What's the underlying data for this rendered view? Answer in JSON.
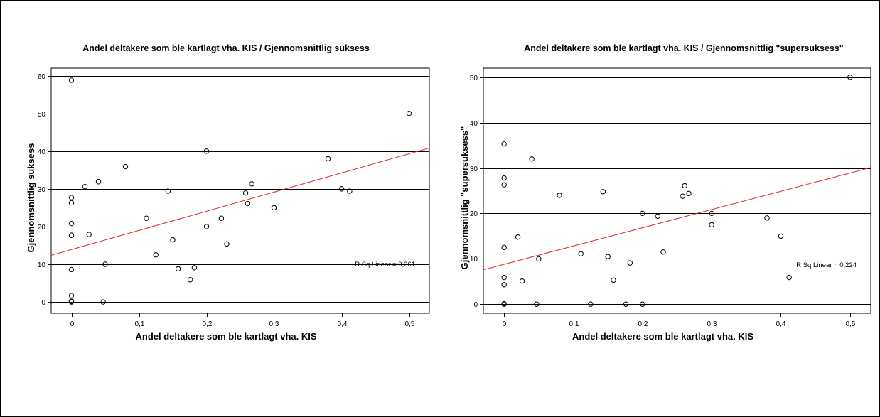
{
  "chart_data": [
    {
      "type": "scatter",
      "title": "Andel deltakere som ble kartlagt vha. KIS / Gjennomsnittlig suksess",
      "xlabel": "Andel deltakere som ble kartlagt vha. KIS",
      "ylabel": "Gjennomsnittlig suksess",
      "xlim": [
        -0.03,
        0.53
      ],
      "ylim": [
        -3,
        62
      ],
      "xticks": [
        0,
        0.1,
        0.2,
        0.3,
        0.4,
        0.5
      ],
      "xtick_labels": [
        "0",
        "0,1",
        "0,2",
        "0,3",
        "0,4",
        "0,5"
      ],
      "yticks": [
        0,
        10,
        20,
        30,
        40,
        50,
        60
      ],
      "ytick_labels": [
        "0",
        "10",
        "20",
        "30",
        "40",
        "50",
        "60"
      ],
      "grid": "horizontal",
      "fit_line": {
        "intercept": 13.9,
        "slope": 50.8,
        "color": "#e0242c"
      },
      "fit_label": "R Sq Linear = 0,261",
      "points": [
        {
          "x": 0,
          "y": 58.8
        },
        {
          "x": 0,
          "y": 27.7
        },
        {
          "x": 0,
          "y": 26.3
        },
        {
          "x": 0,
          "y": 20.8
        },
        {
          "x": 0,
          "y": 17.7
        },
        {
          "x": 0,
          "y": 8.6
        },
        {
          "x": 0,
          "y": 1.7
        },
        {
          "x": 0,
          "y": 0.2
        },
        {
          "x": 0,
          "y": 0
        },
        {
          "x": 0.02,
          "y": 30.6
        },
        {
          "x": 0.026,
          "y": 17.9
        },
        {
          "x": 0.04,
          "y": 31.9
        },
        {
          "x": 0.05,
          "y": 10
        },
        {
          "x": 0.047,
          "y": 0
        },
        {
          "x": 0.08,
          "y": 35.9
        },
        {
          "x": 0.111,
          "y": 22.2
        },
        {
          "x": 0.125,
          "y": 12.5
        },
        {
          "x": 0.143,
          "y": 29.4
        },
        {
          "x": 0.15,
          "y": 16.5
        },
        {
          "x": 0.158,
          "y": 8.8
        },
        {
          "x": 0.176,
          "y": 5.9
        },
        {
          "x": 0.182,
          "y": 9.1
        },
        {
          "x": 0.2,
          "y": 40
        },
        {
          "x": 0.2,
          "y": 20
        },
        {
          "x": 0.222,
          "y": 22.2
        },
        {
          "x": 0.23,
          "y": 15.4
        },
        {
          "x": 0.258,
          "y": 28.9
        },
        {
          "x": 0.261,
          "y": 26.1
        },
        {
          "x": 0.267,
          "y": 31.3
        },
        {
          "x": 0.3,
          "y": 25
        },
        {
          "x": 0.38,
          "y": 38
        },
        {
          "x": 0.4,
          "y": 30
        },
        {
          "x": 0.412,
          "y": 29.4
        },
        {
          "x": 0.5,
          "y": 50
        }
      ]
    },
    {
      "type": "scatter",
      "title": "Andel deltakere som ble kartlagt vha. KIS / Gjennomsnittlig \"supersuksess\"",
      "xlabel": "Andel deltakere som ble kartlagt vha. KIS",
      "ylabel": "Gjennomsnittlig \"supersuksess\"",
      "xlim": [
        -0.03,
        0.53
      ],
      "ylim": [
        -2,
        52
      ],
      "xticks": [
        0,
        0.1,
        0.2,
        0.3,
        0.4,
        0.5
      ],
      "xtick_labels": [
        "0",
        "0,1",
        "0,2",
        "0,3",
        "0,4",
        "0,5"
      ],
      "yticks": [
        0,
        10,
        20,
        30,
        40,
        50
      ],
      "ytick_labels": [
        "0",
        "10",
        "20",
        "30",
        "40",
        "50"
      ],
      "grid": "horizontal",
      "fit_line": {
        "intercept": 8.8,
        "slope": 40.2,
        "color": "#e0242c"
      },
      "fit_label": "R Sq Linear = 0,224",
      "points": [
        {
          "x": 0,
          "y": 35.3
        },
        {
          "x": 0,
          "y": 27.8
        },
        {
          "x": 0,
          "y": 26.3
        },
        {
          "x": 0,
          "y": 12.5
        },
        {
          "x": 0,
          "y": 5.9
        },
        {
          "x": 0,
          "y": 4.3
        },
        {
          "x": 0,
          "y": 0.1
        },
        {
          "x": 0,
          "y": 0
        },
        {
          "x": 0.02,
          "y": 14.8
        },
        {
          "x": 0.026,
          "y": 5.1
        },
        {
          "x": 0.04,
          "y": 32
        },
        {
          "x": 0.05,
          "y": 10
        },
        {
          "x": 0.047,
          "y": 0
        },
        {
          "x": 0.08,
          "y": 24
        },
        {
          "x": 0.111,
          "y": 11.1
        },
        {
          "x": 0.125,
          "y": 0
        },
        {
          "x": 0.143,
          "y": 24.8
        },
        {
          "x": 0.15,
          "y": 10.5
        },
        {
          "x": 0.158,
          "y": 5.3
        },
        {
          "x": 0.176,
          "y": 0
        },
        {
          "x": 0.182,
          "y": 9.1
        },
        {
          "x": 0.2,
          "y": 20
        },
        {
          "x": 0.2,
          "y": 0
        },
        {
          "x": 0.222,
          "y": 19.4
        },
        {
          "x": 0.23,
          "y": 11.5
        },
        {
          "x": 0.258,
          "y": 23.8
        },
        {
          "x": 0.261,
          "y": 26.1
        },
        {
          "x": 0.267,
          "y": 24.4
        },
        {
          "x": 0.3,
          "y": 20
        },
        {
          "x": 0.3,
          "y": 17.5
        },
        {
          "x": 0.38,
          "y": 19
        },
        {
          "x": 0.4,
          "y": 15
        },
        {
          "x": 0.412,
          "y": 5.9
        },
        {
          "x": 0.5,
          "y": 50
        }
      ]
    }
  ]
}
